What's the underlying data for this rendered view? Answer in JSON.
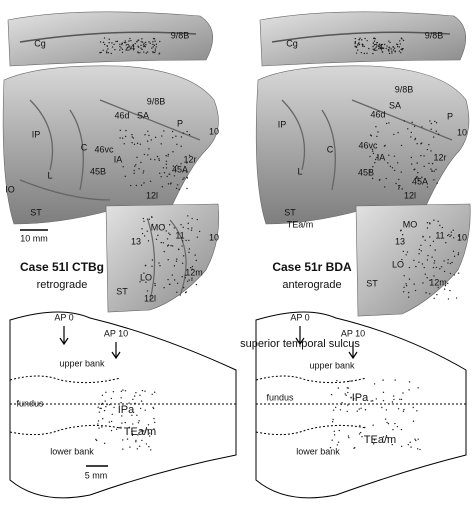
{
  "left": {
    "brain_labels": [
      "Cg",
      "9/8B",
      "24",
      "9/8B",
      "SA",
      "46d",
      "P",
      "10",
      "IP",
      "C",
      "46vc",
      "IA",
      "12r",
      "45B",
      "45A",
      "L",
      "12l",
      "IO",
      "ST",
      "13",
      "11",
      "10",
      "MO",
      "LO",
      "12m",
      "ST",
      "12l"
    ],
    "scale_bar": "10 mm",
    "case": "Case 51l CTBg",
    "tracer": "retrograde"
  },
  "right": {
    "brain_labels": [
      "Cg",
      "9/8B",
      "24",
      "9/8B",
      "SA",
      "46d",
      "P",
      "10",
      "IP",
      "C",
      "46vc",
      "IA",
      "12r",
      "45B",
      "45A",
      "L",
      "12l",
      "ST",
      "TEa/m",
      "MO",
      "13",
      "11",
      "10",
      "LO",
      "12m",
      "ST"
    ],
    "case": "Case 51r BDA",
    "tracer": "anterograde"
  },
  "sts": {
    "title": "superior temporal sulcus",
    "left": {
      "labels": [
        "AP 0",
        "AP 10",
        "upper bank",
        "fundus",
        "IPa",
        "TEa/m",
        "lower bank"
      ],
      "scale_bar": "5 mm"
    },
    "right": {
      "labels": [
        "AP 0",
        "AP 10",
        "upper bank",
        "fundus",
        "IPa",
        "TEa/m",
        "lower bank"
      ]
    }
  }
}
